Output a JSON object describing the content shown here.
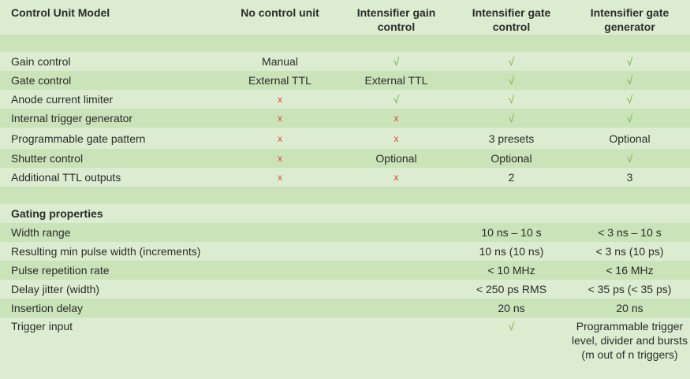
{
  "colors": {
    "check": "#6db33f",
    "cross": "#e0463c",
    "row_light": "#dcecd0",
    "row_dark": "#cae3b9"
  },
  "header": [
    "Control Unit Model",
    "No control unit",
    "Intensifier gain control",
    "Intensifier gate control",
    "Intensifier gate generator"
  ],
  "features": [
    [
      "Gain control",
      "Manual",
      "√",
      "√",
      "√"
    ],
    [
      "Gate control",
      "External TTL",
      "External TTL",
      "√",
      "√"
    ],
    [
      "Anode current limiter",
      "x",
      "√",
      "√",
      "√"
    ],
    [
      "Internal trigger generator",
      "x",
      "x",
      "√",
      "√"
    ],
    [
      "Programmable gate pattern",
      "x",
      "x",
      "3 presets",
      "Optional"
    ],
    [
      "Shutter control",
      "x",
      "Optional",
      "Optional",
      "√"
    ],
    [
      "Additional TTL outputs",
      "x",
      "x",
      "2",
      "3"
    ]
  ],
  "gating_title": "Gating properties",
  "gating": [
    [
      "Width range",
      "",
      "",
      "10 ns – 10 s",
      "< 3 ns – 10 s"
    ],
    [
      "Resulting min pulse width (increments)",
      "",
      "",
      "10 ns (10 ns)",
      "< 3 ns (10 ps)"
    ],
    [
      "Pulse repetition rate",
      "",
      "",
      "< 10 MHz",
      "< 16 MHz"
    ],
    [
      "Delay jitter (width)",
      "",
      "",
      "< 250 ps RMS",
      "< 35 ps (< 35 ps)"
    ],
    [
      "Insertion delay",
      "",
      "",
      "20 ns",
      "20 ns"
    ],
    [
      "Trigger input",
      "",
      "",
      "√",
      "Programmable trigger level, divider and bursts (m out of n triggers)"
    ]
  ]
}
